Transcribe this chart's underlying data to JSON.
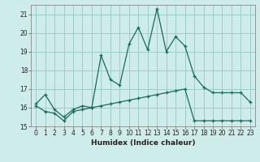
{
  "xlabel": "Humidex (Indice chaleur)",
  "ylabel": "",
  "bg_color": "#ceecea",
  "grid_color": "#9ececa",
  "line_color": "#1a6b5a",
  "xlim": [
    -0.5,
    23.5
  ],
  "ylim": [
    15,
    21.5
  ],
  "yticks": [
    15,
    16,
    17,
    18,
    19,
    20,
    21
  ],
  "xticks": [
    0,
    1,
    2,
    3,
    4,
    5,
    6,
    7,
    8,
    9,
    10,
    11,
    12,
    13,
    14,
    15,
    16,
    17,
    18,
    19,
    20,
    21,
    22,
    23
  ],
  "series1_x": [
    0,
    1,
    2,
    3,
    4,
    5,
    6,
    7,
    8,
    9,
    10,
    11,
    12,
    13,
    14,
    15,
    16,
    17,
    18,
    19,
    20,
    21,
    22,
    23
  ],
  "series1_y": [
    16.2,
    16.7,
    15.9,
    15.5,
    15.9,
    16.1,
    16.0,
    18.8,
    17.5,
    17.2,
    19.4,
    20.3,
    19.1,
    21.3,
    19.0,
    19.8,
    19.3,
    17.7,
    17.1,
    16.8,
    16.8,
    16.8,
    16.8,
    16.3
  ],
  "series2_x": [
    0,
    1,
    2,
    3,
    4,
    5,
    6,
    7,
    8,
    9,
    10,
    11,
    12,
    13,
    14,
    15,
    16,
    17,
    18,
    19,
    20,
    21,
    22,
    23
  ],
  "series2_y": [
    16.1,
    15.8,
    15.7,
    15.3,
    15.8,
    15.9,
    16.0,
    16.1,
    16.2,
    16.3,
    16.4,
    16.5,
    16.6,
    16.7,
    16.8,
    16.9,
    17.0,
    15.3,
    15.3,
    15.3,
    15.3,
    15.3,
    15.3,
    15.3
  ]
}
